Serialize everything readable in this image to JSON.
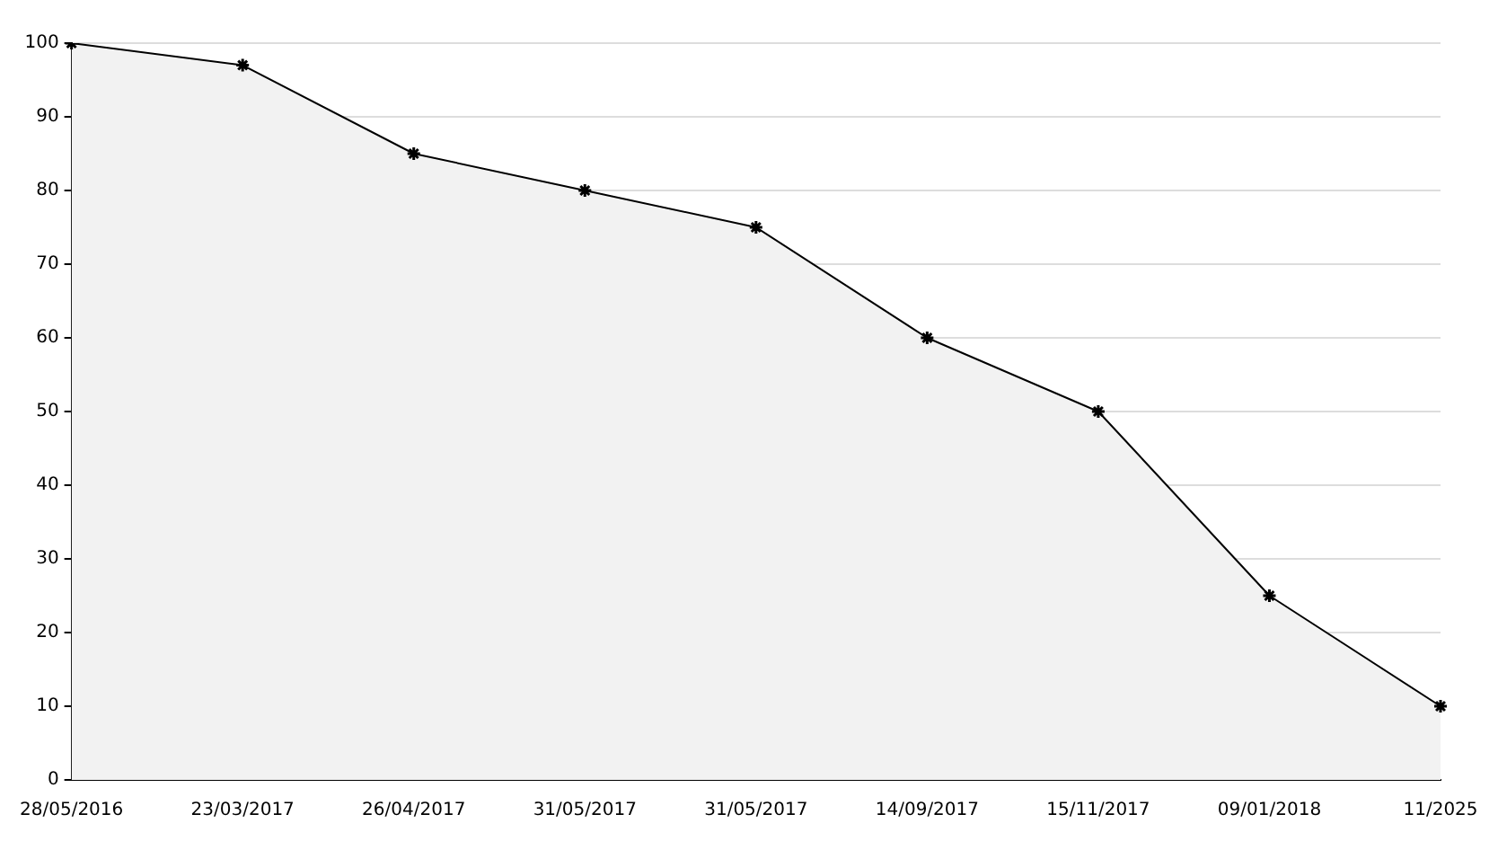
{
  "chart_data": {
    "type": "area",
    "categories": [
      "28/05/2016",
      "23/03/2017",
      "26/04/2017",
      "31/05/2017",
      "31/05/2017",
      "14/09/2017",
      "15/11/2017",
      "09/01/2018",
      "11/2025"
    ],
    "series": [
      {
        "color": "#000000",
        "values": [
          100,
          97,
          85,
          80,
          75,
          60,
          50,
          25,
          10
        ]
      }
    ],
    "ylim": [
      0,
      100
    ],
    "yticks": [
      0,
      10,
      20,
      30,
      40,
      50,
      60,
      70,
      80,
      90,
      100
    ],
    "grid": "y",
    "legend": false,
    "marker": "cross",
    "line_style": "solid"
  }
}
